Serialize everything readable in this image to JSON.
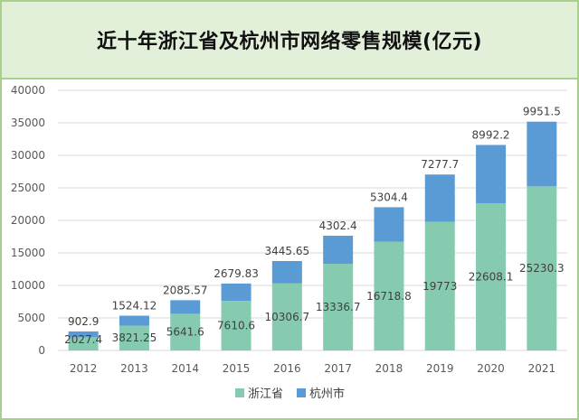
{
  "chart_data": {
    "type": "bar",
    "stacked": true,
    "title": "近十年浙江省及杭州市网络零售规模(亿元)",
    "categories": [
      "2012",
      "2013",
      "2014",
      "2015",
      "2016",
      "2017",
      "2018",
      "2019",
      "2020",
      "2021"
    ],
    "series": [
      {
        "name": "浙江省",
        "color": "#86cbb0",
        "values": [
          2027.4,
          3821.25,
          5641.6,
          7610.6,
          10306.7,
          13336.7,
          16718.8,
          19773,
          22608.1,
          25230.3
        ],
        "labels": [
          "2027.4",
          "3821.25",
          "5641.6",
          "7610.6",
          "10306.7",
          "13336.7",
          "16718.8",
          "19773",
          "22608.1",
          "25230.3"
        ]
      },
      {
        "name": "杭州市",
        "color": "#5b9bd5",
        "values": [
          902.9,
          1524.12,
          2085.57,
          2679.83,
          3445.65,
          4302.4,
          5304.4,
          7277.7,
          8992.2,
          9951.5
        ],
        "labels": [
          "902.9",
          "1524.12",
          "2085.57",
          "2679.83",
          "3445.65",
          "4302.4",
          "5304.4",
          "7277.7",
          "8992.2",
          "9951.5"
        ]
      }
    ],
    "ylim": [
      0,
      40000
    ],
    "yticks": [
      0,
      5000,
      10000,
      15000,
      20000,
      25000,
      30000,
      35000,
      40000
    ],
    "ytick_labels": [
      "0",
      "5000",
      "10000",
      "15000",
      "20000",
      "25000",
      "30000",
      "35000",
      "40000"
    ],
    "grid": true,
    "legend_position": "bottom-center",
    "xlabel": "",
    "ylabel": ""
  }
}
